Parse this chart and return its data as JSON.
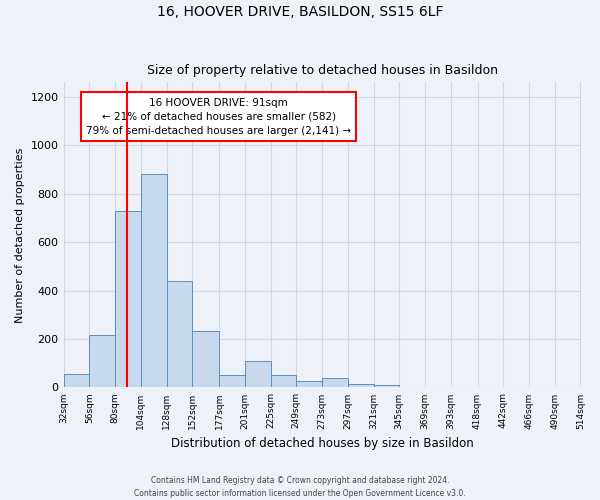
{
  "title": "16, HOOVER DRIVE, BASILDON, SS15 6LF",
  "subtitle": "Size of property relative to detached houses in Basildon",
  "xlabel": "Distribution of detached houses by size in Basildon",
  "ylabel": "Number of detached properties",
  "bar_color": "#c9d9ed",
  "bar_edge_color": "#5a90bf",
  "vline_x": 91,
  "vline_color": "red",
  "annotation_title": "16 HOOVER DRIVE: 91sqm",
  "annotation_line1": "← 21% of detached houses are smaller (582)",
  "annotation_line2": "79% of semi-detached houses are larger (2,141) →",
  "annotation_box_color": "white",
  "annotation_box_edge_color": "red",
  "bin_edges": [
    32,
    56,
    80,
    104,
    128,
    152,
    177,
    201,
    225,
    249,
    273,
    297,
    321,
    345,
    369,
    393,
    418,
    442,
    466,
    490,
    514
  ],
  "bar_heights": [
    55,
    215,
    730,
    880,
    440,
    235,
    50,
    110,
    50,
    25,
    40,
    15,
    10,
    0,
    0,
    0,
    0,
    0,
    0,
    0
  ],
  "ylim": [
    0,
    1260
  ],
  "yticks": [
    0,
    200,
    400,
    600,
    800,
    1000,
    1200
  ],
  "footer_line1": "Contains HM Land Registry data © Crown copyright and database right 2024.",
  "footer_line2": "Contains public sector information licensed under the Open Government Licence v3.0.",
  "background_color": "#eef2f8",
  "grid_color": "#d0d8e8"
}
